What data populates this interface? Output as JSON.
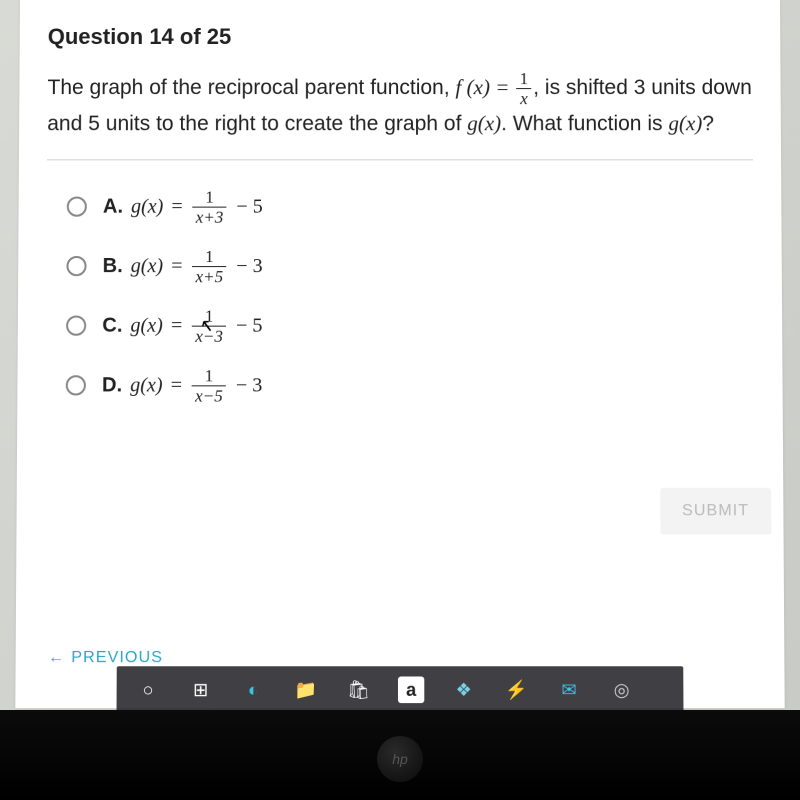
{
  "quiz": {
    "title": "Question 14 of 25",
    "prompt_pre": "The graph of the reciprocal parent function, ",
    "formula_lhs": "f (x) = ",
    "formula_num": "1",
    "formula_den": "x",
    "prompt_mid": ", is shifted 3 units down and 5 units to the right to create the graph of ",
    "gx_ital": "g(x)",
    "prompt_post": ". What function is ",
    "gx2": "g(x)",
    "qmark": "?"
  },
  "options": [
    {
      "letter": "A.",
      "lhs": "g(x)",
      "eq": "=",
      "num": "1",
      "den": "x+3",
      "tail": "− 5"
    },
    {
      "letter": "B.",
      "lhs": "g(x)",
      "eq": "=",
      "num": "1",
      "den": "x+5",
      "tail": "− 3"
    },
    {
      "letter": "C.",
      "lhs": "g(x)",
      "eq": "=",
      "num": "1",
      "den": "x−3",
      "tail": "− 5"
    },
    {
      "letter": "D.",
      "lhs": "g(x)",
      "eq": "=",
      "num": "1",
      "den": "x−5",
      "tail": "− 3"
    }
  ],
  "submit_label": "SUBMIT",
  "previous_label": "PREVIOUS",
  "hp": "hp",
  "colors": {
    "card_bg": "#ffffff",
    "text": "#222222",
    "link": "#2aa5c9",
    "submit_bg": "#f3f3f3",
    "submit_text": "#bbbbbb",
    "taskbar_bg": "rgba(30,30,35,0.85)"
  },
  "taskbar_icons": [
    {
      "name": "start-icon",
      "glyph": "○"
    },
    {
      "name": "task-view-icon",
      "glyph": "⊞"
    },
    {
      "name": "edge-icon",
      "glyph": "◐"
    },
    {
      "name": "explorer-icon",
      "glyph": "📁"
    },
    {
      "name": "store-icon",
      "glyph": "🛍"
    },
    {
      "name": "amazon-icon",
      "glyph": "a"
    },
    {
      "name": "dropbox-icon",
      "glyph": "❖"
    },
    {
      "name": "power-icon",
      "glyph": "⚡"
    },
    {
      "name": "mail-icon",
      "glyph": "✉"
    },
    {
      "name": "chrome-icon",
      "glyph": "◎"
    }
  ]
}
